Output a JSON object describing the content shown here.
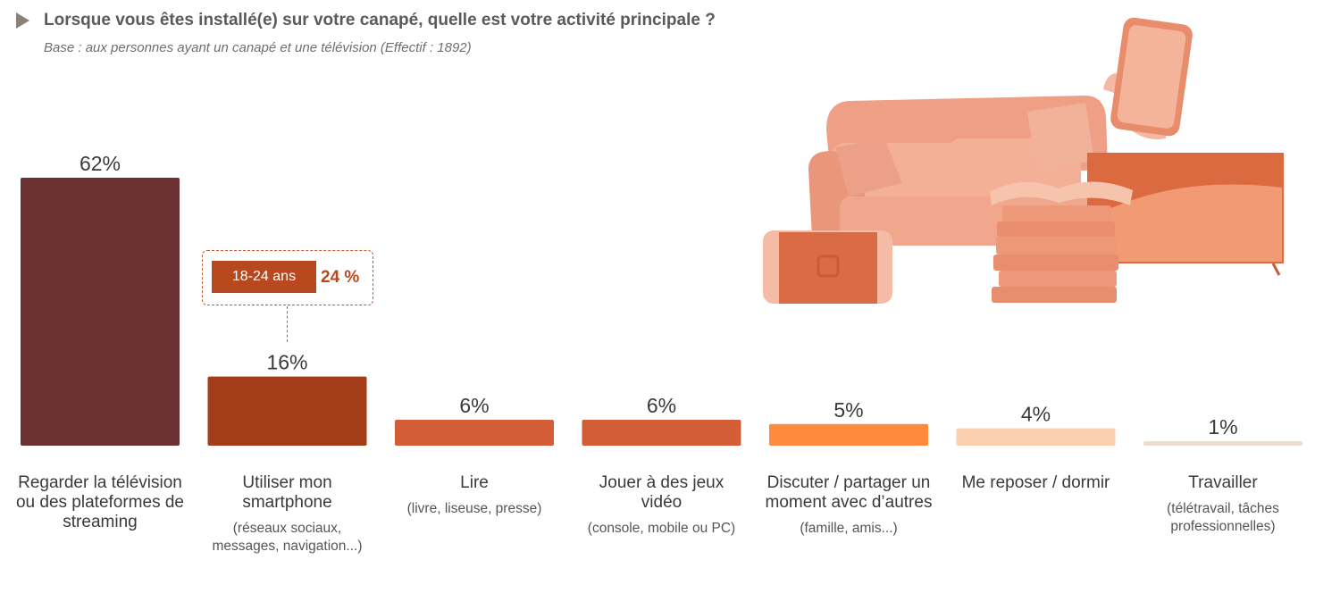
{
  "header": {
    "title": "Lorsque vous êtes installé(e) sur votre canapé, quelle est votre activité principale ?",
    "subtitle": "Base : aux personnes ayant un canapé et une télévision (Effectif : 1892)"
  },
  "chart_data": {
    "type": "bar",
    "title": "Lorsque vous êtes installé(e) sur votre canapé, quelle est votre activité principale ?",
    "unit": "%",
    "ylim": [
      0,
      62
    ],
    "categories": [
      {
        "label": "Regarder la télévision ou des plateformes de streaming",
        "sub": ""
      },
      {
        "label": "Utiliser mon smartphone",
        "sub": "(réseaux sociaux, messages, navigation...)"
      },
      {
        "label": "Lire",
        "sub": "(livre, liseuse, presse)"
      },
      {
        "label": "Jouer à des jeux vidéo",
        "sub": "(console, mobile ou PC)"
      },
      {
        "label": "Discuter / partager un moment avec d’autres",
        "sub": "(famille, amis...)"
      },
      {
        "label": "Me reposer / dormir",
        "sub": ""
      },
      {
        "label": "Travailler",
        "sub": "(télétravail, tâches professionnelles)"
      }
    ],
    "values": [
      62,
      16,
      6,
      6,
      5,
      4,
      1
    ],
    "value_labels": [
      "62%",
      "16%",
      "6%",
      "6%",
      "5%",
      "4%",
      "1%"
    ],
    "colors": [
      "#6b3032",
      "#a23c19",
      "#d35d36",
      "#d35d36",
      "#ff8a3d",
      "#f9cfb0",
      "#eaddcf"
    ],
    "annotation": {
      "group": "18-24 ans",
      "value": "24 %",
      "category_index": 1
    }
  }
}
